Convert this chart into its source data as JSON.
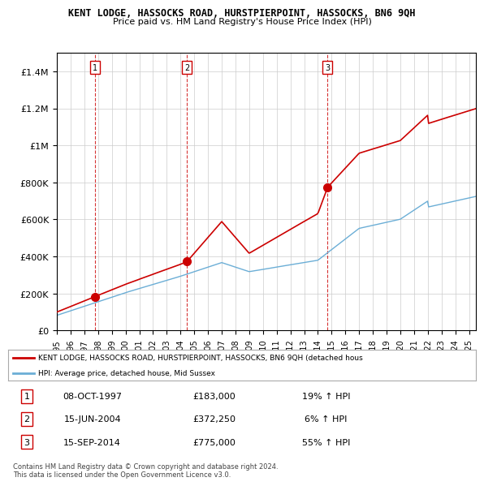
{
  "title": "KENT LODGE, HASSOCKS ROAD, HURSTPIERPOINT, HASSOCKS, BN6 9QH",
  "subtitle": "Price paid vs. HM Land Registry's House Price Index (HPI)",
  "ylim": [
    0,
    1500000
  ],
  "yticks": [
    0,
    200000,
    400000,
    600000,
    800000,
    1000000,
    1200000,
    1400000
  ],
  "ytick_labels": [
    "£0",
    "£200K",
    "£400K",
    "£600K",
    "£800K",
    "£1M",
    "£1.2M",
    "£1.4M"
  ],
  "sale_dates_year": [
    1997.77,
    2004.46,
    2014.71
  ],
  "sale_prices": [
    183000,
    372250,
    775000
  ],
  "sale_labels": [
    "1",
    "2",
    "3"
  ],
  "hpi_color": "#6baed6",
  "price_color": "#cc0000",
  "sale_marker_color": "#cc0000",
  "vline_color": "#cc0000",
  "grid_color": "#cccccc",
  "background_color": "#ffffff",
  "legend_line1": "KENT LODGE, HASSOCKS ROAD, HURSTPIERPOINT, HASSOCKS, BN6 9QH (detached hous",
  "legend_line2": "HPI: Average price, detached house, Mid Sussex",
  "table_rows": [
    [
      "1",
      "08-OCT-1997",
      "£183,000",
      "19% ↑ HPI"
    ],
    [
      "2",
      "15-JUN-2004",
      "£372,250",
      "6% ↑ HPI"
    ],
    [
      "3",
      "15-SEP-2014",
      "£775,000",
      "55% ↑ HPI"
    ]
  ],
  "footer": "Contains HM Land Registry data © Crown copyright and database right 2024.\nThis data is licensed under the Open Government Licence v3.0.",
  "start_year": 1995.0,
  "end_year": 2025.5
}
